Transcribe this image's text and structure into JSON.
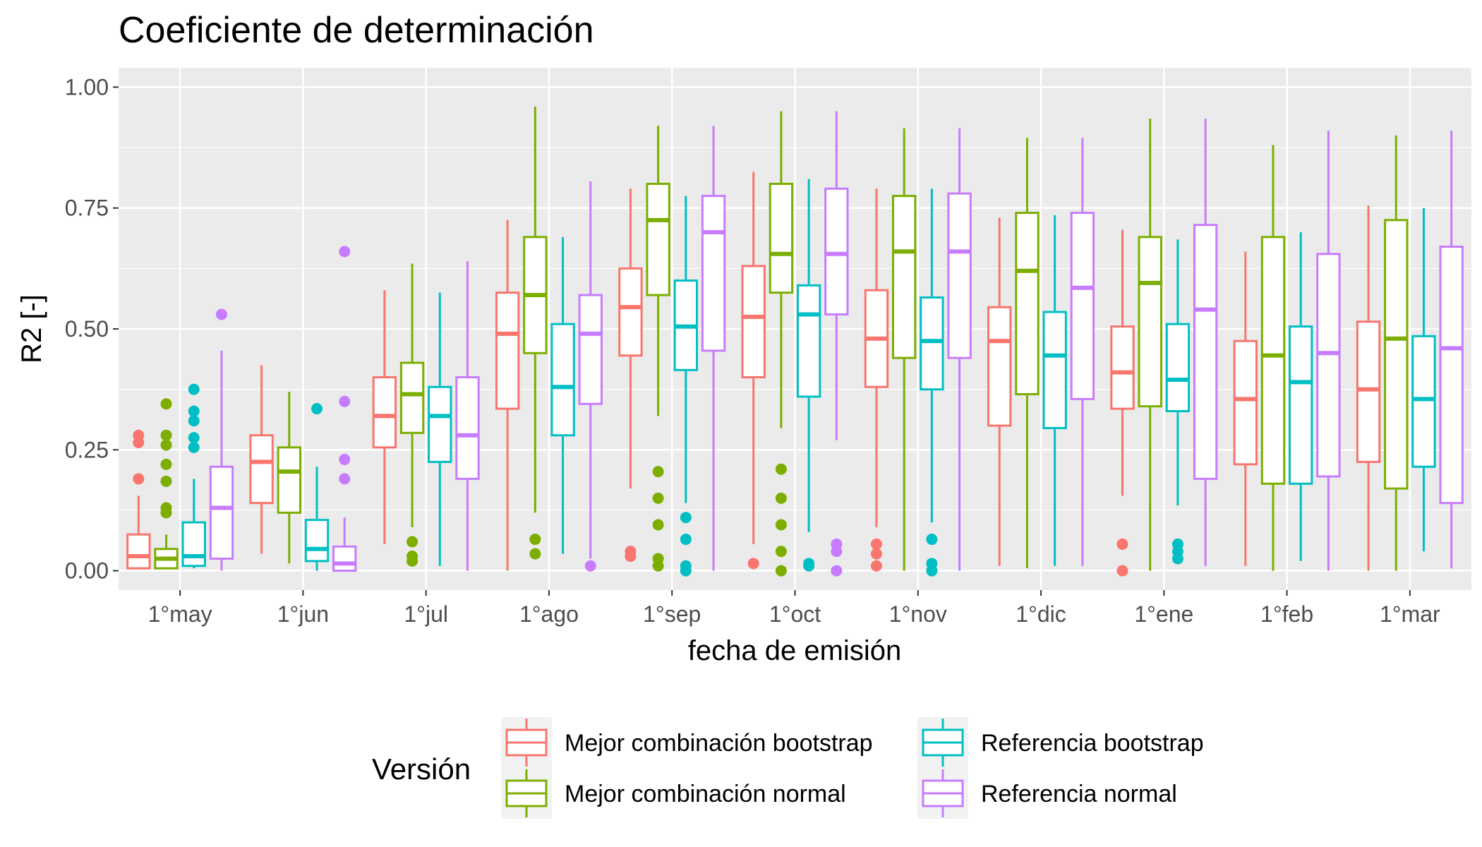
{
  "chart_data": {
    "type": "boxplot",
    "title": "Coeficiente de determinación",
    "xlabel": "fecha de emisión",
    "ylabel": "R2 [-]",
    "ylim": [
      -0.04,
      1.04
    ],
    "yticks": [
      "0.00",
      "0.25",
      "0.50",
      "0.75",
      "1.00"
    ],
    "ytick_values": [
      0,
      0.25,
      0.5,
      0.75,
      1.0
    ],
    "grid": true,
    "legend_title": "Versión",
    "legend_position": "bottom",
    "categories": [
      "1°may",
      "1°jun",
      "1°jul",
      "1°ago",
      "1°sep",
      "1°oct",
      "1°nov",
      "1°dic",
      "1°ene",
      "1°feb",
      "1°mar"
    ],
    "series": [
      {
        "name": "Mejor combinación bootstrap",
        "color": "#F8766D",
        "boxes": [
          {
            "low": 0.005,
            "q1": 0.005,
            "median": 0.03,
            "q3": 0.075,
            "high": 0.155,
            "outliers": [
              0.19,
              0.265,
              0.28
            ]
          },
          {
            "low": 0.035,
            "q1": 0.14,
            "median": 0.225,
            "q3": 0.28,
            "high": 0.425,
            "outliers": []
          },
          {
            "low": 0.055,
            "q1": 0.255,
            "median": 0.32,
            "q3": 0.4,
            "high": 0.58,
            "outliers": []
          },
          {
            "low": 0.0,
            "q1": 0.335,
            "median": 0.49,
            "q3": 0.575,
            "high": 0.725,
            "outliers": []
          },
          {
            "low": 0.17,
            "q1": 0.445,
            "median": 0.545,
            "q3": 0.625,
            "high": 0.79,
            "outliers": [
              0.03,
              0.04
            ]
          },
          {
            "low": 0.055,
            "q1": 0.4,
            "median": 0.525,
            "q3": 0.63,
            "high": 0.825,
            "outliers": [
              0.015
            ]
          },
          {
            "low": 0.09,
            "q1": 0.38,
            "median": 0.48,
            "q3": 0.58,
            "high": 0.79,
            "outliers": [
              0.01,
              0.035,
              0.055
            ]
          },
          {
            "low": 0.01,
            "q1": 0.3,
            "median": 0.475,
            "q3": 0.545,
            "high": 0.73,
            "outliers": []
          },
          {
            "low": 0.155,
            "q1": 0.335,
            "median": 0.41,
            "q3": 0.505,
            "high": 0.705,
            "outliers": [
              0.0,
              0.055
            ]
          },
          {
            "low": 0.01,
            "q1": 0.22,
            "median": 0.355,
            "q3": 0.475,
            "high": 0.66,
            "outliers": []
          },
          {
            "low": 0.0,
            "q1": 0.225,
            "median": 0.375,
            "q3": 0.515,
            "high": 0.755,
            "outliers": []
          }
        ]
      },
      {
        "name": "Mejor combinación normal",
        "color": "#7CAE00",
        "boxes": [
          {
            "low": 0.005,
            "q1": 0.005,
            "median": 0.025,
            "q3": 0.045,
            "high": 0.075,
            "outliers": [
              0.12,
              0.13,
              0.185,
              0.22,
              0.26,
              0.28,
              0.345
            ]
          },
          {
            "low": 0.015,
            "q1": 0.12,
            "median": 0.205,
            "q3": 0.255,
            "high": 0.37,
            "outliers": []
          },
          {
            "low": 0.09,
            "q1": 0.285,
            "median": 0.365,
            "q3": 0.43,
            "high": 0.635,
            "outliers": [
              0.02,
              0.03,
              0.06
            ]
          },
          {
            "low": 0.12,
            "q1": 0.45,
            "median": 0.57,
            "q3": 0.69,
            "high": 0.96,
            "outliers": [
              0.035,
              0.065
            ]
          },
          {
            "low": 0.32,
            "q1": 0.57,
            "median": 0.725,
            "q3": 0.8,
            "high": 0.92,
            "outliers": [
              0.01,
              0.025,
              0.095,
              0.15,
              0.205
            ]
          },
          {
            "low": 0.295,
            "q1": 0.575,
            "median": 0.655,
            "q3": 0.8,
            "high": 0.95,
            "outliers": [
              0.0,
              0.04,
              0.095,
              0.15,
              0.21
            ]
          },
          {
            "low": 0.0,
            "q1": 0.44,
            "median": 0.66,
            "q3": 0.775,
            "high": 0.915,
            "outliers": []
          },
          {
            "low": 0.005,
            "q1": 0.365,
            "median": 0.62,
            "q3": 0.74,
            "high": 0.895,
            "outliers": []
          },
          {
            "low": 0.0,
            "q1": 0.34,
            "median": 0.595,
            "q3": 0.69,
            "high": 0.935,
            "outliers": []
          },
          {
            "low": 0.0,
            "q1": 0.18,
            "median": 0.445,
            "q3": 0.69,
            "high": 0.88,
            "outliers": []
          },
          {
            "low": 0.0,
            "q1": 0.17,
            "median": 0.48,
            "q3": 0.725,
            "high": 0.9,
            "outliers": []
          }
        ]
      },
      {
        "name": "Referencia bootstrap",
        "color": "#00BFC4",
        "boxes": [
          {
            "low": 0.005,
            "q1": 0.01,
            "median": 0.03,
            "q3": 0.1,
            "high": 0.19,
            "outliers": [
              0.255,
              0.275,
              0.31,
              0.33,
              0.375
            ]
          },
          {
            "low": 0.0,
            "q1": 0.02,
            "median": 0.045,
            "q3": 0.105,
            "high": 0.215,
            "outliers": [
              0.335
            ]
          },
          {
            "low": 0.01,
            "q1": 0.225,
            "median": 0.32,
            "q3": 0.38,
            "high": 0.575,
            "outliers": []
          },
          {
            "low": 0.035,
            "q1": 0.28,
            "median": 0.38,
            "q3": 0.51,
            "high": 0.69,
            "outliers": []
          },
          {
            "low": 0.14,
            "q1": 0.415,
            "median": 0.505,
            "q3": 0.6,
            "high": 0.775,
            "outliers": [
              0.0,
              0.01,
              0.065,
              0.11
            ]
          },
          {
            "low": 0.08,
            "q1": 0.36,
            "median": 0.53,
            "q3": 0.59,
            "high": 0.81,
            "outliers": [
              0.01,
              0.015
            ]
          },
          {
            "low": 0.1,
            "q1": 0.375,
            "median": 0.475,
            "q3": 0.565,
            "high": 0.79,
            "outliers": [
              0.0,
              0.015,
              0.065
            ]
          },
          {
            "low": 0.01,
            "q1": 0.295,
            "median": 0.445,
            "q3": 0.535,
            "high": 0.735,
            "outliers": []
          },
          {
            "low": 0.135,
            "q1": 0.33,
            "median": 0.395,
            "q3": 0.51,
            "high": 0.685,
            "outliers": [
              0.025,
              0.04,
              0.055
            ]
          },
          {
            "low": 0.02,
            "q1": 0.18,
            "median": 0.39,
            "q3": 0.505,
            "high": 0.7,
            "outliers": []
          },
          {
            "low": 0.04,
            "q1": 0.215,
            "median": 0.355,
            "q3": 0.485,
            "high": 0.75,
            "outliers": []
          }
        ]
      },
      {
        "name": "Referencia normal",
        "color": "#C77CFF",
        "boxes": [
          {
            "low": 0.0,
            "q1": 0.025,
            "median": 0.13,
            "q3": 0.215,
            "high": 0.455,
            "outliers": [
              0.53
            ]
          },
          {
            "low": 0.0,
            "q1": 0.0,
            "median": 0.015,
            "q3": 0.05,
            "high": 0.11,
            "outliers": [
              0.19,
              0.23,
              0.35,
              0.66
            ]
          },
          {
            "low": 0.0,
            "q1": 0.19,
            "median": 0.28,
            "q3": 0.4,
            "high": 0.64,
            "outliers": []
          },
          {
            "low": 0.025,
            "q1": 0.345,
            "median": 0.49,
            "q3": 0.57,
            "high": 0.805,
            "outliers": [
              0.01
            ]
          },
          {
            "low": 0.0,
            "q1": 0.455,
            "median": 0.7,
            "q3": 0.775,
            "high": 0.92,
            "outliers": []
          },
          {
            "low": 0.27,
            "q1": 0.53,
            "median": 0.655,
            "q3": 0.79,
            "high": 0.95,
            "outliers": [
              0.0,
              0.04,
              0.055
            ]
          },
          {
            "low": 0.0,
            "q1": 0.44,
            "median": 0.66,
            "q3": 0.78,
            "high": 0.915,
            "outliers": []
          },
          {
            "low": 0.01,
            "q1": 0.355,
            "median": 0.585,
            "q3": 0.74,
            "high": 0.895,
            "outliers": []
          },
          {
            "low": 0.01,
            "q1": 0.19,
            "median": 0.54,
            "q3": 0.715,
            "high": 0.935,
            "outliers": []
          },
          {
            "low": 0.0,
            "q1": 0.195,
            "median": 0.45,
            "q3": 0.655,
            "high": 0.91,
            "outliers": []
          },
          {
            "low": 0.005,
            "q1": 0.14,
            "median": 0.46,
            "q3": 0.67,
            "high": 0.91,
            "outliers": []
          }
        ]
      }
    ]
  }
}
